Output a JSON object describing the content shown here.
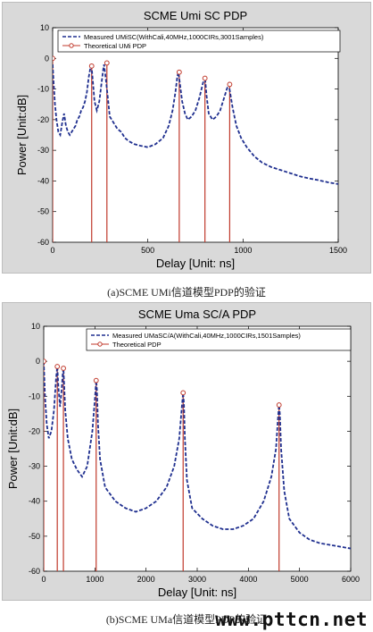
{
  "chart_data": [
    {
      "type": "line",
      "title": "SCME Umi SC PDP",
      "xlabel": "Delay [Unit: ns]",
      "ylabel": "Power [Unit:dB]",
      "xlim": [
        0,
        1500
      ],
      "ylim": [
        -60,
        10
      ],
      "xticks": [
        0,
        500,
        1000,
        1500
      ],
      "yticks": [
        10,
        0,
        -10,
        -20,
        -30,
        -40,
        -50,
        -60
      ],
      "grid": false,
      "legend_position": "top-right",
      "series": [
        {
          "name": "Measured UMiSC(WithCali,40MHz,1000CIRs,3001Samples)",
          "style": "dashed",
          "color": "#1f2f8f",
          "x": [
            0,
            5,
            12,
            20,
            30,
            40,
            50,
            60,
            70,
            80,
            90,
            100,
            110,
            120,
            130,
            140,
            150,
            160,
            170,
            180,
            190,
            200,
            205,
            212,
            220,
            232,
            245,
            255,
            265,
            270,
            280,
            290,
            300,
            320,
            340,
            360,
            380,
            400,
            430,
            460,
            500,
            540,
            580,
            610,
            630,
            645,
            655,
            660,
            668,
            680,
            695,
            710,
            730,
            750,
            770,
            790,
            800,
            808,
            820,
            840,
            860,
            880,
            900,
            915,
            925,
            932,
            945,
            965,
            990,
            1020,
            1060,
            1100,
            1150,
            1200,
            1250,
            1300,
            1350,
            1400,
            1450,
            1500
          ],
          "y": [
            -2,
            -8,
            -15,
            -20,
            -24,
            -25,
            -21,
            -18,
            -22,
            -24,
            -25,
            -24,
            -23,
            -22,
            -20,
            -19,
            -17,
            -16,
            -14,
            -11,
            -6,
            -2.5,
            -3,
            -8,
            -14,
            -17,
            -14,
            -9,
            -4,
            -2,
            -7,
            -13,
            -19,
            -21,
            -23,
            -24,
            -26,
            -27,
            -28,
            -28.5,
            -29,
            -28,
            -26,
            -22,
            -17,
            -11,
            -6,
            -4.5,
            -8,
            -14,
            -18,
            -20,
            -19,
            -17,
            -13,
            -8,
            -6,
            -12,
            -18,
            -20,
            -19,
            -17,
            -13,
            -10,
            -8.5,
            -11,
            -16,
            -22,
            -26,
            -29,
            -32,
            -34,
            -35.5,
            -36.5,
            -37.5,
            -38.5,
            -39.2,
            -39.8,
            -40.5,
            -41
          ]
        },
        {
          "name": "Theoretical UMi PDP",
          "style": "stem",
          "color": "#c0392b",
          "x": [
            0,
            205,
            285,
            665,
            800,
            930
          ],
          "y": [
            0,
            -2.5,
            -1.5,
            -4.5,
            -6.5,
            -8.5
          ]
        }
      ]
    },
    {
      "type": "line",
      "title": "SCME Uma SC/A PDP",
      "xlabel": "Delay [Unit: ns]",
      "ylabel": "Power [Unit:dB]",
      "xlim": [
        0,
        6000
      ],
      "ylim": [
        -60,
        10
      ],
      "xticks": [
        0,
        1000,
        2000,
        3000,
        4000,
        5000,
        6000
      ],
      "yticks": [
        10,
        0,
        -10,
        -20,
        -30,
        -40,
        -50,
        -60
      ],
      "grid": false,
      "legend_position": "top-right",
      "series": [
        {
          "name": "Measured UMaSC/A(WithCali,40MHz,1000CIRs,1501Samples)",
          "style": "dashed",
          "color": "#1f2f8f",
          "x": [
            0,
            25,
            60,
            100,
            150,
            200,
            240,
            265,
            290,
            320,
            350,
            370,
            385,
            420,
            470,
            550,
            650,
            750,
            850,
            950,
            1000,
            1025,
            1040,
            1060,
            1100,
            1200,
            1400,
            1600,
            1800,
            2000,
            2200,
            2400,
            2550,
            2650,
            2700,
            2725,
            2740,
            2760,
            2800,
            2900,
            3100,
            3300,
            3500,
            3700,
            3900,
            4100,
            4300,
            4450,
            4540,
            4580,
            4600,
            4615,
            4640,
            4700,
            4800,
            5000,
            5200,
            5400,
            5600,
            5800,
            6000
          ],
          "y": [
            0,
            -10,
            -18,
            -22,
            -20,
            -14,
            -5,
            -1.5,
            -8,
            -13,
            -8,
            -4,
            -2,
            -14,
            -22,
            -28,
            -31,
            -33,
            -30,
            -20,
            -11,
            -5.5,
            -8,
            -18,
            -28,
            -36,
            -40,
            -42,
            -43,
            -42,
            -40,
            -36,
            -30,
            -22,
            -13,
            -9,
            -12,
            -22,
            -34,
            -42,
            -45,
            -47,
            -48,
            -48,
            -47,
            -45,
            -40,
            -33,
            -25,
            -16,
            -12.5,
            -15,
            -25,
            -37,
            -45,
            -49,
            -51,
            -52,
            -52.5,
            -53,
            -53.5
          ]
        },
        {
          "name": "Theoretical PDP",
          "style": "stem",
          "color": "#c0392b",
          "x": [
            0,
            265,
            385,
            1025,
            2725,
            4600
          ],
          "y": [
            0,
            -1.5,
            -2,
            -5.5,
            -9,
            -12.5
          ]
        }
      ]
    }
  ],
  "captions": [
    "(a)SCME  UMi信道模型PDP的验证",
    "(b)SCME  UMa信道模型PDP的验证"
  ],
  "watermark": "www.pttcn.net"
}
